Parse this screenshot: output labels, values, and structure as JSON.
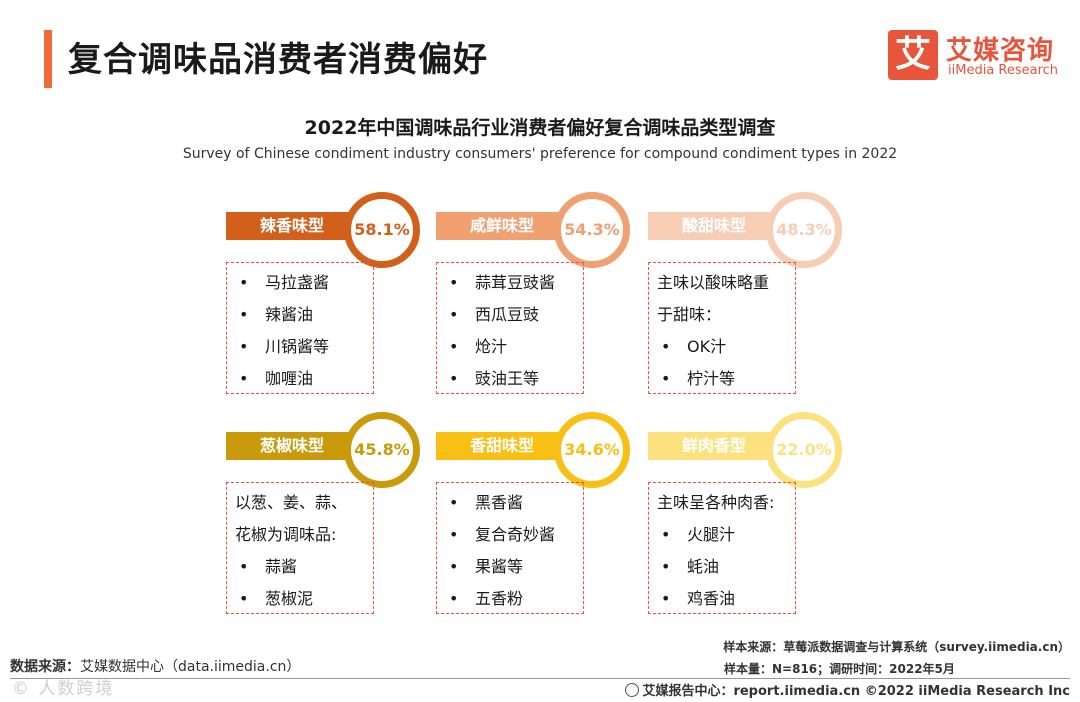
{
  "header": {
    "title": "复合调味品消费者消费偏好",
    "logo_mark": "艾",
    "logo_cn": "艾媒咨询",
    "logo_en": "iiMedia Research",
    "accent_color": "#f26a3b"
  },
  "chart_data": {
    "type": "table",
    "title": "2022年中国调味品行业消费者偏好复合调味品类型调查",
    "subtitle": "Survey of Chinese condiment industry consumers' preference for compound condiment types in 2022",
    "categories": [
      "辣香味型",
      "咸鲜味型",
      "酸甜味型",
      "葱椒味型",
      "香甜味型",
      "鲜肉香型"
    ],
    "values": [
      58.1,
      54.3,
      48.3,
      45.8,
      34.6,
      22.0
    ],
    "value_labels": [
      "58.1%",
      "54.3%",
      "48.3%",
      "45.8%",
      "34.6%",
      "22.0%"
    ],
    "colors": [
      "#d2601a",
      "#f0a071",
      "#f7cdb4",
      "#c99a0b",
      "#f8bf14",
      "#fce27e"
    ],
    "items": [
      {
        "lines": [
          {
            "bullet": "•",
            "text": "马拉盏酱"
          },
          {
            "bullet": "•",
            "text": "辣酱油"
          },
          {
            "bullet": "•",
            "text": "川锅酱等"
          },
          {
            "bullet": "•",
            "text": "咖喱油"
          }
        ]
      },
      {
        "lines": [
          {
            "bullet": "•",
            "text": "蒜茸豆豉酱"
          },
          {
            "bullet": "•",
            "text": "西瓜豆豉"
          },
          {
            "bullet": "•",
            "text": "炝汁"
          },
          {
            "bullet": "•",
            "text": "豉油王等"
          }
        ]
      },
      {
        "lines": [
          {
            "bullet": "",
            "text": "主味以酸味略重"
          },
          {
            "bullet": "",
            "text": "于甜味："
          },
          {
            "bullet": "•",
            "text": "OK汁"
          },
          {
            "bullet": "•",
            "text": "柠汁等"
          }
        ]
      },
      {
        "lines": [
          {
            "bullet": "",
            "text": "以葱、姜、蒜、"
          },
          {
            "bullet": "",
            "text": "花椒为调味品:"
          },
          {
            "bullet": "•",
            "text": "蒜酱"
          },
          {
            "bullet": "•",
            "text": "葱椒泥"
          }
        ]
      },
      {
        "lines": [
          {
            "bullet": "•",
            "text": "黑香酱"
          },
          {
            "bullet": "•",
            "text": "复合奇妙酱"
          },
          {
            "bullet": "•",
            "text": "果酱等"
          },
          {
            "bullet": "•",
            "text": "五香粉"
          }
        ]
      },
      {
        "lines": [
          {
            "bullet": "",
            "text": "主味呈各种肉香:"
          },
          {
            "bullet": "•",
            "text": "火腿汁"
          },
          {
            "bullet": "•",
            "text": "蚝油"
          },
          {
            "bullet": "•",
            "text": "鸡香油"
          }
        ]
      }
    ]
  },
  "footer": {
    "source_label": "数据来源：",
    "source_text": "艾媒数据中心（data.iimedia.cn）",
    "watermark": "©   人数跨境",
    "sample_source": "样本来源：草莓派数据调查与计算系统（survey.iimedia.cn）",
    "sample_info": "样本量：N=816；调研时间：2022年5月",
    "report_center": "艾媒报告中心：report.iimedia.cn   ©2022  iiMedia Research  Inc"
  }
}
